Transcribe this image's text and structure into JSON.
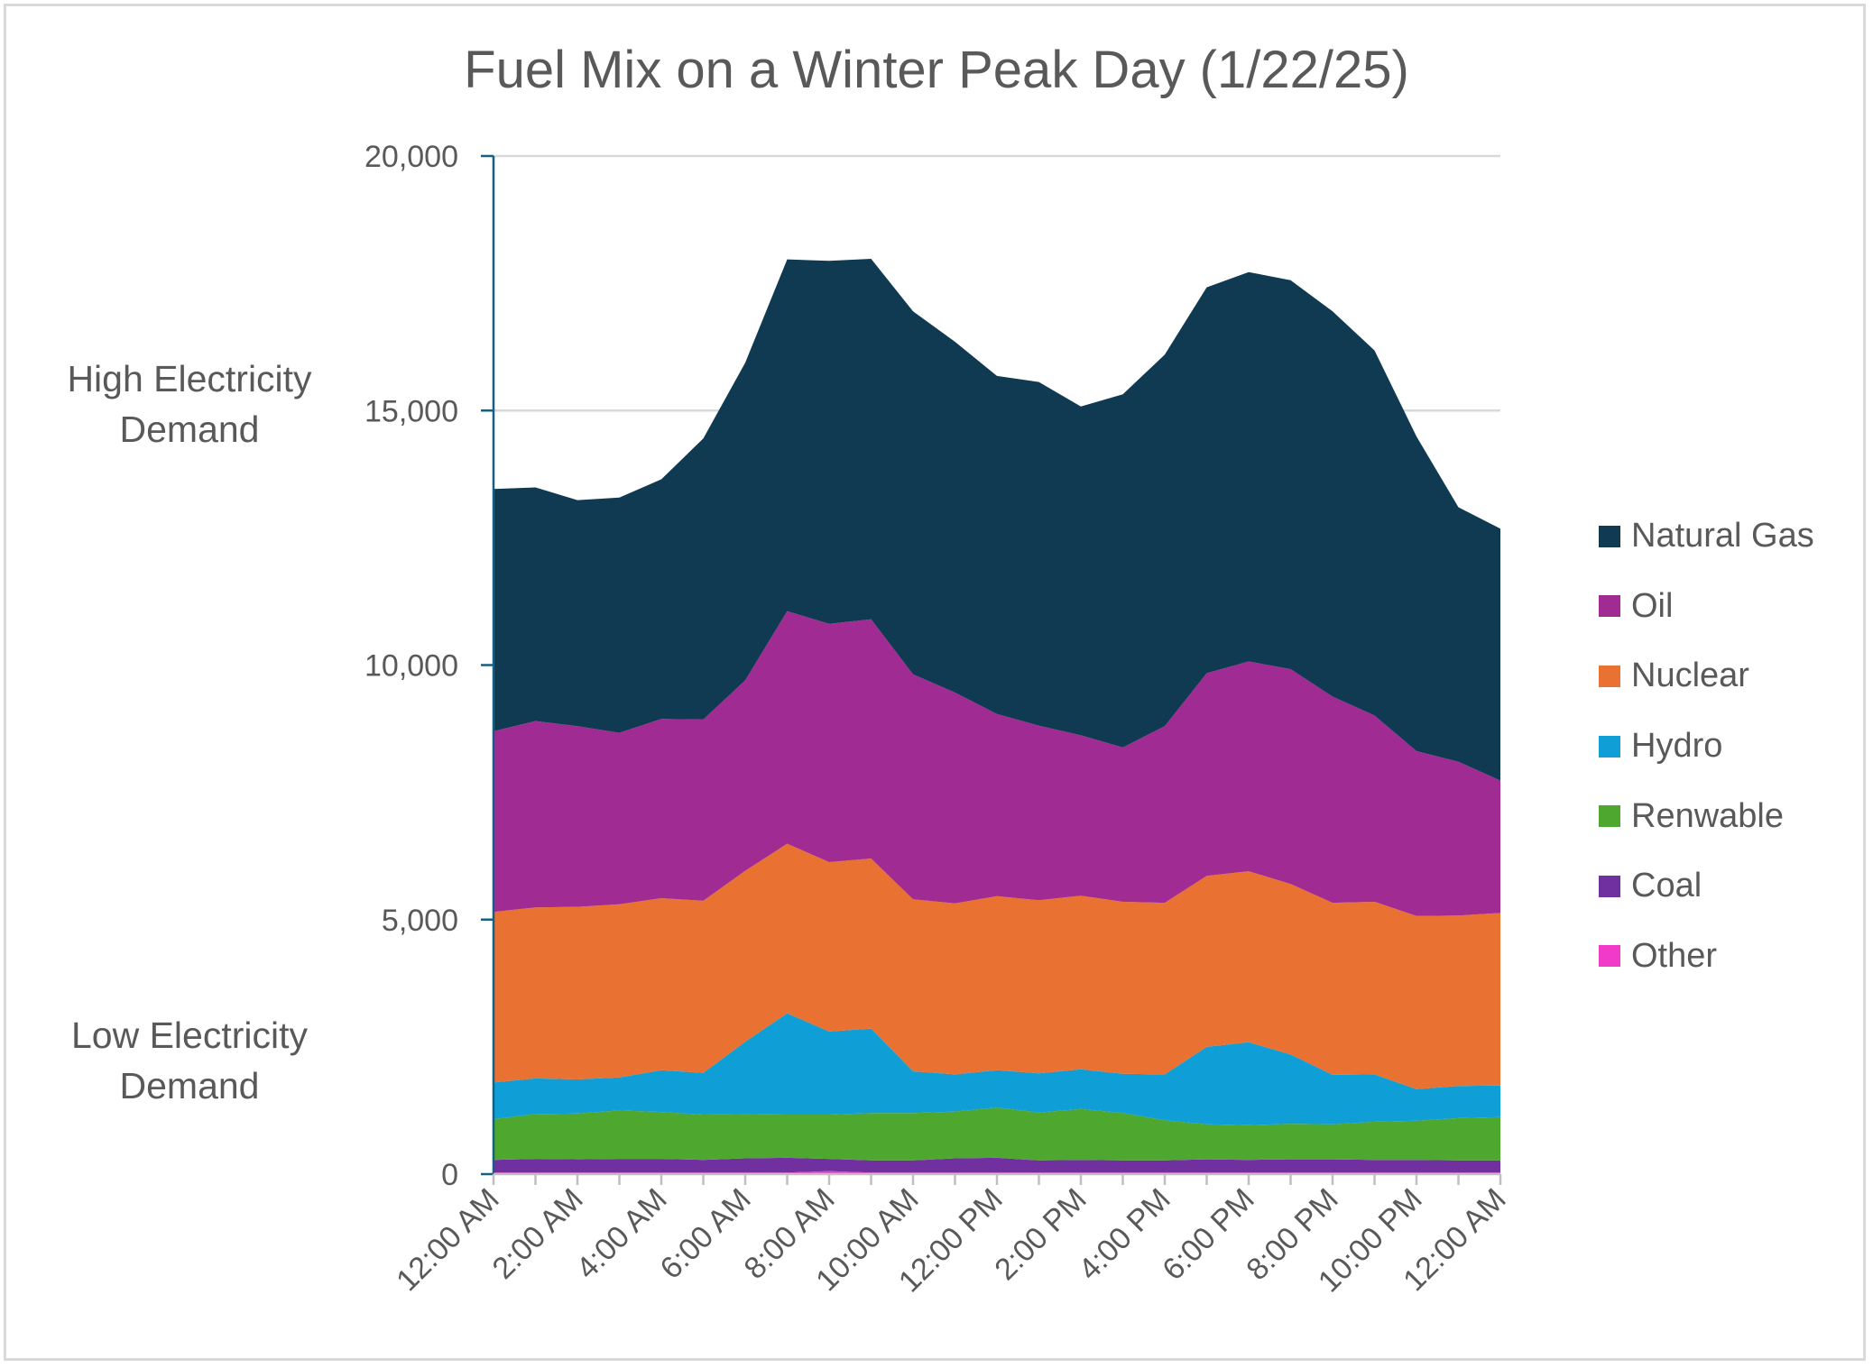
{
  "title": "Fuel Mix on a Winter Peak Day (1/22/25)",
  "band_labels": {
    "high": [
      "High Electricity",
      "Demand"
    ],
    "low": [
      "Low Electricity",
      "Demand"
    ]
  },
  "colors": {
    "Natural Gas": "#0f3a51",
    "Oil": "#a02b93",
    "Nuclear": "#e97132",
    "Hydro": "#0f9ed5",
    "Renwable": "#4ea72e",
    "Coal": "#7030a0",
    "Other": "#f23ac8",
    "axis": "#156082",
    "grid": "#d9d9d9"
  },
  "legend": [
    "Natural Gas",
    "Oil",
    "Nuclear",
    "Hydro",
    "Renwable",
    "Coal",
    "Other"
  ],
  "chart_data": {
    "type": "area",
    "stacked": true,
    "title": "Fuel Mix on a Winter Peak Day (1/22/25)",
    "ylim": [
      0,
      20000
    ],
    "yticks": [
      0,
      5000,
      10000,
      15000,
      20000
    ],
    "ytick_labels": [
      "0",
      "5,000",
      "10,000",
      "15,000",
      "20,000"
    ],
    "x_labels": [
      "12:00 AM",
      "2:00 AM",
      "4:00 AM",
      "6:00 AM",
      "8:00 AM",
      "10:00 AM",
      "12:00 PM",
      "2:00 PM",
      "4:00 PM",
      "6:00 PM",
      "8:00 PM",
      "10:00 PM",
      "12:00 AM"
    ],
    "hours": [
      0,
      1,
      2,
      3,
      4,
      5,
      6,
      7,
      8,
      9,
      10,
      11,
      12,
      13,
      14,
      15,
      16,
      17,
      18,
      19,
      20,
      21,
      22,
      23,
      24
    ],
    "grid": true,
    "legend_position": "right",
    "series": [
      {
        "name": "Other",
        "values": [
          30,
          30,
          30,
          30,
          30,
          30,
          30,
          30,
          60,
          30,
          30,
          30,
          30,
          30,
          30,
          30,
          30,
          30,
          30,
          30,
          30,
          30,
          30,
          30,
          30
        ]
      },
      {
        "name": "Coal",
        "values": [
          250,
          270,
          260,
          270,
          270,
          250,
          280,
          290,
          240,
          240,
          240,
          280,
          290,
          240,
          250,
          240,
          240,
          260,
          250,
          260,
          260,
          250,
          250,
          240,
          240
        ]
      },
      {
        "name": "Renwable",
        "values": [
          800,
          880,
          900,
          950,
          920,
          890,
          870,
          850,
          870,
          930,
          930,
          920,
          990,
          940,
          1000,
          930,
          790,
          690,
          680,
          700,
          690,
          750,
          770,
          830,
          850
        ]
      },
      {
        "name": "Hydro",
        "values": [
          720,
          700,
          670,
          650,
          820,
          820,
          1420,
          1990,
          1630,
          1660,
          820,
          730,
          730,
          770,
          780,
          770,
          900,
          1520,
          1630,
          1360,
          970,
          930,
          620,
          630,
          620
        ]
      },
      {
        "name": "Nuclear",
        "values": [
          3350,
          3360,
          3390,
          3400,
          3380,
          3380,
          3360,
          3330,
          3330,
          3340,
          3380,
          3360,
          3420,
          3400,
          3410,
          3380,
          3370,
          3360,
          3360,
          3350,
          3380,
          3390,
          3400,
          3350,
          3390
        ]
      },
      {
        "name": "Oil",
        "values": [
          3550,
          3660,
          3550,
          3370,
          3520,
          3560,
          3740,
          4570,
          4680,
          4700,
          4420,
          4140,
          3580,
          3430,
          3150,
          3030,
          3470,
          3980,
          4120,
          4220,
          4050,
          3660,
          3240,
          3020,
          2600
        ]
      },
      {
        "name": "Natural Gas",
        "values": [
          4760,
          4590,
          4440,
          4620,
          4710,
          5520,
          6240,
          6910,
          7130,
          7080,
          7130,
          6890,
          6640,
          6750,
          6460,
          6940,
          7300,
          7580,
          7650,
          7640,
          7570,
          7170,
          6180,
          5000,
          4950
        ]
      }
    ]
  }
}
